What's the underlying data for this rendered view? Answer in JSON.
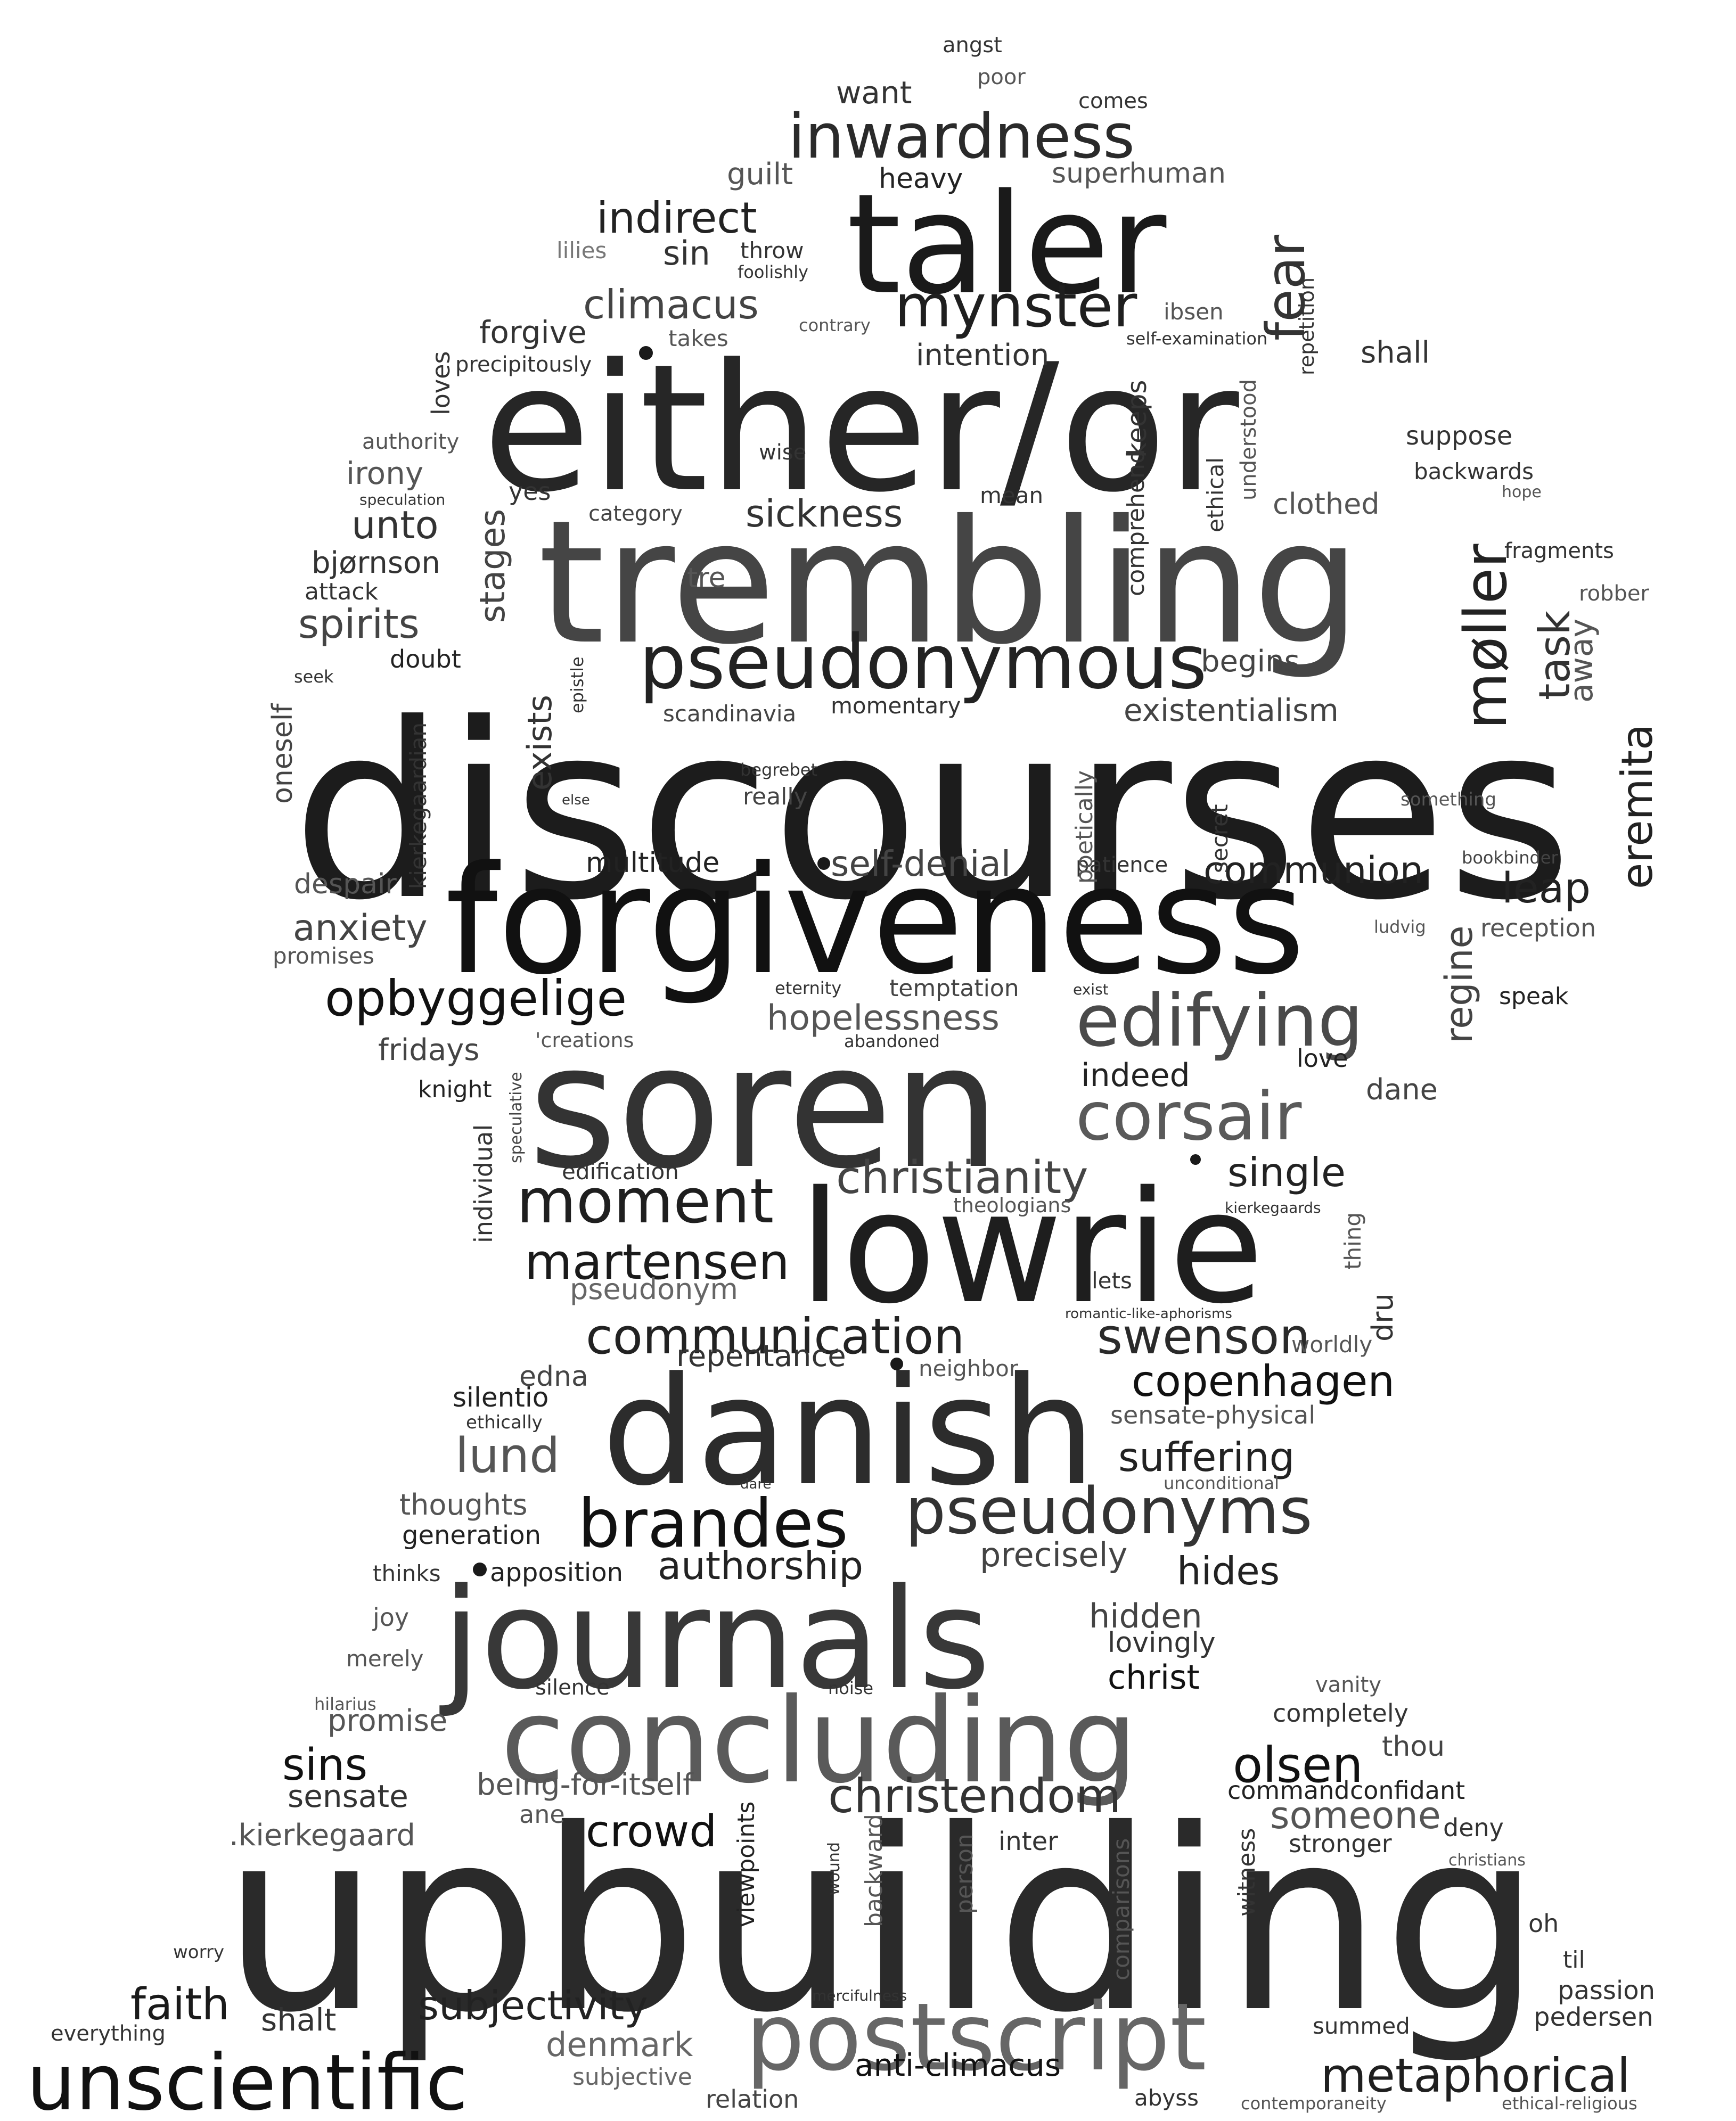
{
  "words": [
    {
      "text": "discourses",
      "color": "#1c1c1c"
    },
    {
      "text": "upbuilding",
      "color": "#2a2a2a"
    },
    {
      "text": "either/or",
      "color": "#262626"
    },
    {
      "text": "trembling",
      "color": "#454545"
    },
    {
      "text": "forgiveness",
      "color": "#111111"
    },
    {
      "text": "soren",
      "color": "#333333"
    },
    {
      "text": "lowrie",
      "color": "#1e1e1e"
    },
    {
      "text": "danish",
      "color": "#2c2c2c"
    },
    {
      "text": "journals",
      "color": "#383838"
    },
    {
      "text": "concluding",
      "color": "#5a5a5a"
    },
    {
      "text": "postscript",
      "color": "#666666"
    },
    {
      "text": "taler",
      "color": "#1a1a1a"
    },
    {
      "text": "unscientific",
      "color": "#111111"
    },
    {
      "text": "pseudonymous",
      "color": "#222222"
    },
    {
      "text": "edifying",
      "color": "#4a4a4a"
    },
    {
      "text": "inwardness",
      "color": "#2a2a2a"
    },
    {
      "text": "mynster",
      "color": "#1f1f1f"
    },
    {
      "text": "corsair",
      "color": "#5a5a5a"
    },
    {
      "text": "pseudonyms",
      "color": "#333333"
    },
    {
      "text": "brandes",
      "color": "#111111"
    },
    {
      "text": "moment",
      "color": "#1f1f1f"
    },
    {
      "text": "christianity",
      "color": "#444444"
    },
    {
      "text": "communication",
      "color": "#222222"
    },
    {
      "text": "swenson",
      "color": "#2a2a2a"
    },
    {
      "text": "martensen",
      "color": "#1a1a1a"
    },
    {
      "text": "copenhagen",
      "color": "#111111"
    },
    {
      "text": "opbyggelige",
      "color": "#111111"
    },
    {
      "text": "christendom",
      "color": "#333333"
    },
    {
      "text": "metaphorical",
      "color": "#1f1f1f"
    },
    {
      "text": "subjectivity",
      "color": "#222222"
    },
    {
      "text": "authorship",
      "color": "#222222"
    },
    {
      "text": "hopelessness",
      "color": "#555555"
    },
    {
      "text": "sickness",
      "color": "#333333"
    },
    {
      "text": "climacus",
      "color": "#444444"
    },
    {
      "text": "indirect",
      "color": "#222222"
    },
    {
      "text": "existentialism",
      "color": "#444444"
    },
    {
      "text": "communion",
      "color": "#222222"
    },
    {
      "text": "self-denial",
      "color": "#444444"
    },
    {
      "text": "suffering",
      "color": "#222222"
    },
    {
      "text": "olsen",
      "color": "#111111"
    },
    {
      "text": "faith",
      "color": "#1a1a1a"
    },
    {
      "text": "crowd",
      "color": "#111111"
    },
    {
      "text": "sins",
      "color": "#111111"
    },
    {
      "text": "single",
      "color": "#222222"
    },
    {
      "text": "hides",
      "color": "#222222"
    },
    {
      "text": "lund",
      "color": "#555555"
    },
    {
      "text": "leap",
      "color": "#222222"
    },
    {
      "text": "anti-climacus",
      "color": "#111111"
    },
    {
      "text": "someone",
      "color": "#555555"
    },
    {
      "text": "spirits",
      "color": "#444444"
    },
    {
      "text": "unto",
      "color": "#333333"
    },
    {
      "text": "anxiety",
      "color": "#444444"
    },
    {
      "text": "repentance",
      "color": "#333333"
    },
    {
      "text": "precisely",
      "color": "#444444"
    },
    {
      "text": "hidden",
      "color": "#444444"
    },
    {
      "text": "christ",
      "color": "#111111"
    },
    {
      "text": "denmark",
      "color": "#666666"
    },
    {
      "text": "shalt",
      "color": "#333333"
    },
    {
      "text": "want",
      "color": "#333333"
    },
    {
      "text": "sin",
      "color": "#333333"
    },
    {
      "text": "forgive",
      "color": "#333333"
    },
    {
      "text": "intention",
      "color": "#333333"
    },
    {
      "text": "begins",
      "color": "#444444"
    },
    {
      "text": "irony",
      "color": "#555555"
    },
    {
      "text": "bjørnson",
      "color": "#333333"
    },
    {
      "text": "multitude",
      "color": "#222222"
    },
    {
      "text": "indeed",
      "color": "#222222"
    },
    {
      "text": "fridays",
      "color": "#444444"
    },
    {
      "text": "edna",
      "color": "#444444"
    },
    {
      "text": "silentio",
      "color": "#222222"
    },
    {
      "text": "generation",
      "color": "#222222"
    },
    {
      "text": "apposition",
      "color": "#222222"
    },
    {
      "text": "sensate",
      "color": "#333333"
    },
    {
      "text": "promise",
      "color": "#555555"
    },
    {
      "text": "being-for-itself",
      "color": "#555555"
    },
    {
      "text": ".kierkegaard",
      "color": "#555555"
    },
    {
      "text": "pedersen",
      "color": "#333333"
    },
    {
      "text": "passion",
      "color": "#333333"
    },
    {
      "text": "thoughts",
      "color": "#555555"
    },
    {
      "text": "pseudonym",
      "color": "#666666"
    },
    {
      "text": "guilt",
      "color": "#555555"
    },
    {
      "text": "superhuman",
      "color": "#555555"
    },
    {
      "text": "heavy",
      "color": "#222222"
    },
    {
      "text": "shall",
      "color": "#333333"
    },
    {
      "text": "suppose",
      "color": "#333333"
    },
    {
      "text": "backwards",
      "color": "#333333"
    },
    {
      "text": "clothed",
      "color": "#555555"
    },
    {
      "text": "fragments",
      "color": "#333333"
    },
    {
      "text": "speak",
      "color": "#222222"
    },
    {
      "text": "reception",
      "color": "#555555"
    },
    {
      "text": "dane",
      "color": "#444444"
    },
    {
      "text": "love",
      "color": "#222222"
    },
    {
      "text": "lovingly",
      "color": "#333333"
    },
    {
      "text": "completely",
      "color": "#333333"
    },
    {
      "text": "thou",
      "color": "#444444"
    },
    {
      "text": "confidant",
      "color": "#222222"
    },
    {
      "text": "command",
      "color": "#222222"
    },
    {
      "text": "stronger",
      "color": "#333333"
    },
    {
      "text": "deny",
      "color": "#333333"
    },
    {
      "text": "inter",
      "color": "#333333"
    },
    {
      "text": "oh",
      "color": "#333333"
    },
    {
      "text": "til",
      "color": "#333333"
    },
    {
      "text": "summed",
      "color": "#333333"
    },
    {
      "text": "relation",
      "color": "#444444"
    },
    {
      "text": "subjective",
      "color": "#666666"
    },
    {
      "text": "everything",
      "color": "#333333"
    },
    {
      "text": "abyss",
      "color": "#333333"
    },
    {
      "text": "contemporaneity",
      "color": "#555555"
    },
    {
      "text": "ethical-religious",
      "color": "#555555"
    },
    {
      "text": "angst",
      "color": "#333333"
    },
    {
      "text": "poor",
      "color": "#555555"
    },
    {
      "text": "comes",
      "color": "#333333"
    },
    {
      "text": "lilies",
      "color": "#777777"
    },
    {
      "text": "throw",
      "color": "#333333"
    },
    {
      "text": "foolishly",
      "color": "#333333"
    },
    {
      "text": "takes",
      "color": "#555555"
    },
    {
      "text": "contrary",
      "color": "#555555"
    },
    {
      "text": "ibsen",
      "color": "#555555"
    },
    {
      "text": "self-examination",
      "color": "#333333"
    },
    {
      "text": "precipitously",
      "color": "#333333"
    },
    {
      "text": "authority",
      "color": "#555555"
    },
    {
      "text": "wise",
      "color": "#333333"
    },
    {
      "text": "yes",
      "color": "#333333"
    },
    {
      "text": "mean",
      "color": "#333333"
    },
    {
      "text": "category",
      "color": "#444444"
    },
    {
      "text": "speculation",
      "color": "#333333"
    },
    {
      "text": "attack",
      "color": "#333333"
    },
    {
      "text": "tre",
      "color": "#555555"
    },
    {
      "text": "doubt",
      "color": "#222222"
    },
    {
      "text": "seek",
      "color": "#333333"
    },
    {
      "text": "scandinavia",
      "color": "#444444"
    },
    {
      "text": "momentary",
      "color": "#333333"
    },
    {
      "text": "robber",
      "color": "#555555"
    },
    {
      "text": "hope",
      "color": "#555555"
    },
    {
      "text": "begrebet",
      "color": "#333333"
    },
    {
      "text": "really",
      "color": "#444444"
    },
    {
      "text": "else",
      "color": "#333333"
    },
    {
      "text": "something",
      "color": "#555555"
    },
    {
      "text": "bookbinder",
      "color": "#444444"
    },
    {
      "text": "ludvig",
      "color": "#555555"
    },
    {
      "text": "despair",
      "color": "#555555"
    },
    {
      "text": "patience",
      "color": "#333333"
    },
    {
      "text": "promises",
      "color": "#555555"
    },
    {
      "text": "eternity",
      "color": "#333333"
    },
    {
      "text": "temptation",
      "color": "#444444"
    },
    {
      "text": "exist",
      "color": "#333333"
    },
    {
      "text": "'creations",
      "color": "#555555"
    },
    {
      "text": "abandoned",
      "color": "#333333"
    },
    {
      "text": "knight",
      "color": "#222222"
    },
    {
      "text": "edification",
      "color": "#333333"
    },
    {
      "text": "theologians",
      "color": "#555555"
    },
    {
      "text": "kierkegaards",
      "color": "#333333"
    },
    {
      "text": "lets",
      "color": "#333333"
    },
    {
      "text": "romantic-like-aphorisms",
      "color": "#333333"
    },
    {
      "text": "worldly",
      "color": "#555555"
    },
    {
      "text": "neighbor",
      "color": "#555555"
    },
    {
      "text": "ethically",
      "color": "#333333"
    },
    {
      "text": "sensate-physical",
      "color": "#555555"
    },
    {
      "text": "dare",
      "color": "#333333"
    },
    {
      "text": "unconditional",
      "color": "#555555"
    },
    {
      "text": "thinks",
      "color": "#333333"
    },
    {
      "text": "joy",
      "color": "#555555"
    },
    {
      "text": "merely",
      "color": "#555555"
    },
    {
      "text": "hilarius",
      "color": "#555555"
    },
    {
      "text": "silence",
      "color": "#333333"
    },
    {
      "text": "noise",
      "color": "#333333"
    },
    {
      "text": "vanity",
      "color": "#555555"
    },
    {
      "text": "ane",
      "color": "#555555"
    },
    {
      "text": "christians",
      "color": "#555555"
    },
    {
      "text": "worry",
      "color": "#333333"
    },
    {
      "text": "mercifulness",
      "color": "#333333"
    },
    {
      "text": "fear",
      "color": "#333333"
    },
    {
      "text": "møller",
      "color": "#222222"
    },
    {
      "text": "task",
      "color": "#333333"
    },
    {
      "text": "away",
      "color": "#555555"
    },
    {
      "text": "eremita",
      "color": "#222222"
    },
    {
      "text": "regine",
      "color": "#444444"
    },
    {
      "text": "stages",
      "color": "#444444"
    },
    {
      "text": "exists",
      "color": "#333333"
    },
    {
      "text": "oneself",
      "color": "#444444"
    },
    {
      "text": "kierkegaardian",
      "color": "#333333"
    },
    {
      "text": "epistle",
      "color": "#333333"
    },
    {
      "text": "keeps",
      "color": "#333333"
    },
    {
      "text": "comprehend",
      "color": "#333333"
    },
    {
      "text": "ethical",
      "color": "#333333"
    },
    {
      "text": "understood",
      "color": "#555555"
    },
    {
      "text": "repetition",
      "color": "#333333"
    },
    {
      "text": "loves",
      "color": "#333333"
    },
    {
      "text": "poetically",
      "color": "#555555"
    },
    {
      "text": "secret",
      "color": "#333333"
    },
    {
      "text": "individual",
      "color": "#333333"
    },
    {
      "text": "speculative",
      "color": "#444444"
    },
    {
      "text": "thing",
      "color": "#555555"
    },
    {
      "text": "dru",
      "color": "#333333"
    },
    {
      "text": "viewpoints",
      "color": "#222222"
    },
    {
      "text": "wound",
      "color": "#333333"
    },
    {
      "text": "backward",
      "color": "#555555"
    },
    {
      "text": "person",
      "color": "#555555"
    },
    {
      "text": "comparisons",
      "color": "#555555"
    },
    {
      "text": "witness",
      "color": "#333333"
    }
  ]
}
